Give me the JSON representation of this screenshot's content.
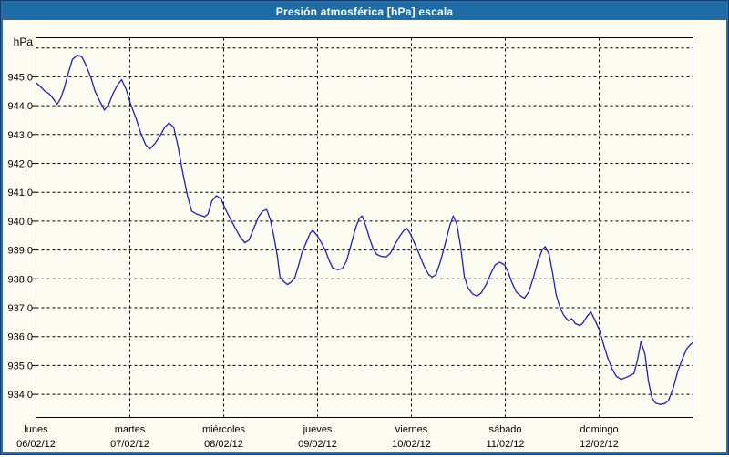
{
  "window": {
    "title": "Presión atmosférica [hPa] escala"
  },
  "colors": {
    "title_bar": "#1e6da6",
    "title_text": "#ffffff",
    "frame_border": "#2a6da8",
    "frame_outline": "#123f6f",
    "background": "#fcfcf2",
    "plot_border": "#000000",
    "grid": "#000000",
    "line": "#2020b8",
    "text": "#000000"
  },
  "chart_data": {
    "type": "line",
    "title": "Presión atmosférica [hPa] escala",
    "ylabel": "hPa",
    "ylim": [
      933.2,
      946.4
    ],
    "grid": "dashed",
    "y_ticks": [
      {
        "value": 945,
        "label": "945,0"
      },
      {
        "value": 944,
        "label": "944,0"
      },
      {
        "value": 943,
        "label": "943,0"
      },
      {
        "value": 942,
        "label": "942,0"
      },
      {
        "value": 941,
        "label": "941,0"
      },
      {
        "value": 940,
        "label": "940,0"
      },
      {
        "value": 939,
        "label": "939,0"
      },
      {
        "value": 938,
        "label": "938,0"
      },
      {
        "value": 937,
        "label": "937,0"
      },
      {
        "value": 936,
        "label": "936,0"
      },
      {
        "value": 935,
        "label": "935,0"
      },
      {
        "value": 934,
        "label": "934,0"
      }
    ],
    "y_top_gridline_value": 946,
    "x_range_hours": [
      0,
      168
    ],
    "x_days": [
      {
        "name": "lunes",
        "date": "06/02/12"
      },
      {
        "name": "martes",
        "date": "07/02/12"
      },
      {
        "name": "miércoles",
        "date": "08/02/12"
      },
      {
        "name": "jueves",
        "date": "09/02/12"
      },
      {
        "name": "viernes",
        "date": "10/02/12"
      },
      {
        "name": "sábado",
        "date": "11/02/12"
      },
      {
        "name": "domingo",
        "date": "12/02/12"
      }
    ],
    "series": [
      {
        "name": "Presión atmosférica",
        "unit": "hPa",
        "color": "#2020b8",
        "points": [
          [
            0.0,
            944.8
          ],
          [
            1.2,
            944.65
          ],
          [
            2.3,
            944.5
          ],
          [
            3.3,
            944.42
          ],
          [
            4.2,
            944.28
          ],
          [
            5.4,
            944.05
          ],
          [
            6.3,
            944.25
          ],
          [
            7.2,
            944.6
          ],
          [
            8.2,
            945.1
          ],
          [
            9.3,
            945.6
          ],
          [
            10.5,
            945.75
          ],
          [
            11.7,
            945.7
          ],
          [
            12.8,
            945.4
          ],
          [
            14.0,
            944.98
          ],
          [
            15.1,
            944.5
          ],
          [
            16.3,
            944.15
          ],
          [
            17.5,
            943.85
          ],
          [
            18.6,
            944.05
          ],
          [
            19.8,
            944.45
          ],
          [
            21.0,
            944.75
          ],
          [
            21.9,
            944.9
          ],
          [
            23.1,
            944.55
          ],
          [
            24.2,
            944.05
          ],
          [
            25.6,
            943.55
          ],
          [
            26.8,
            943.05
          ],
          [
            28.0,
            942.65
          ],
          [
            29.1,
            942.5
          ],
          [
            30.5,
            942.7
          ],
          [
            31.7,
            942.95
          ],
          [
            32.9,
            943.25
          ],
          [
            34.0,
            943.4
          ],
          [
            35.2,
            943.25
          ],
          [
            36.3,
            942.6
          ],
          [
            37.5,
            941.7
          ],
          [
            38.7,
            940.9
          ],
          [
            39.8,
            940.35
          ],
          [
            41.0,
            940.25
          ],
          [
            42.2,
            940.2
          ],
          [
            43.1,
            940.15
          ],
          [
            44.0,
            940.25
          ],
          [
            45.0,
            940.7
          ],
          [
            46.1,
            940.88
          ],
          [
            47.3,
            940.78
          ],
          [
            48.5,
            940.4
          ],
          [
            49.6,
            940.1
          ],
          [
            50.8,
            939.8
          ],
          [
            52.0,
            939.5
          ],
          [
            53.4,
            939.25
          ],
          [
            54.5,
            939.35
          ],
          [
            55.7,
            939.75
          ],
          [
            56.9,
            940.15
          ],
          [
            58.0,
            940.35
          ],
          [
            59.0,
            940.4
          ],
          [
            59.9,
            940.05
          ],
          [
            60.8,
            939.5
          ],
          [
            61.7,
            938.8
          ],
          [
            62.4,
            938.05
          ],
          [
            63.4,
            937.9
          ],
          [
            64.3,
            937.8
          ],
          [
            65.2,
            937.88
          ],
          [
            66.2,
            938.05
          ],
          [
            67.1,
            938.45
          ],
          [
            68.0,
            938.9
          ],
          [
            69.2,
            939.3
          ],
          [
            70.1,
            939.58
          ],
          [
            70.8,
            939.68
          ],
          [
            72.0,
            939.48
          ],
          [
            73.2,
            939.2
          ],
          [
            74.1,
            938.95
          ],
          [
            75.0,
            938.62
          ],
          [
            75.9,
            938.38
          ],
          [
            77.1,
            938.32
          ],
          [
            78.3,
            938.35
          ],
          [
            79.4,
            938.62
          ],
          [
            80.6,
            939.2
          ],
          [
            81.8,
            939.8
          ],
          [
            82.7,
            940.1
          ],
          [
            83.4,
            940.18
          ],
          [
            84.3,
            939.85
          ],
          [
            85.3,
            939.4
          ],
          [
            86.2,
            939.05
          ],
          [
            87.1,
            938.85
          ],
          [
            88.3,
            938.78
          ],
          [
            89.5,
            938.76
          ],
          [
            90.6,
            938.88
          ],
          [
            91.8,
            939.2
          ],
          [
            93.0,
            939.48
          ],
          [
            94.1,
            939.68
          ],
          [
            94.8,
            939.75
          ],
          [
            95.8,
            939.55
          ],
          [
            96.9,
            939.2
          ],
          [
            98.1,
            938.82
          ],
          [
            99.2,
            938.45
          ],
          [
            100.4,
            938.15
          ],
          [
            101.3,
            938.06
          ],
          [
            102.3,
            938.15
          ],
          [
            103.4,
            938.6
          ],
          [
            104.6,
            939.2
          ],
          [
            105.8,
            939.85
          ],
          [
            106.7,
            940.18
          ],
          [
            107.6,
            939.9
          ],
          [
            108.6,
            939.1
          ],
          [
            109.5,
            938.1
          ],
          [
            110.4,
            937.7
          ],
          [
            111.6,
            937.48
          ],
          [
            112.8,
            937.4
          ],
          [
            113.9,
            937.52
          ],
          [
            115.1,
            937.8
          ],
          [
            116.3,
            938.18
          ],
          [
            117.4,
            938.48
          ],
          [
            118.6,
            938.58
          ],
          [
            119.8,
            938.48
          ],
          [
            120.7,
            938.25
          ],
          [
            121.6,
            937.9
          ],
          [
            122.8,
            937.55
          ],
          [
            124.0,
            937.4
          ],
          [
            124.9,
            937.33
          ],
          [
            126.0,
            937.55
          ],
          [
            127.2,
            938.05
          ],
          [
            128.4,
            938.65
          ],
          [
            129.5,
            939.02
          ],
          [
            130.2,
            939.12
          ],
          [
            131.2,
            938.85
          ],
          [
            132.1,
            938.2
          ],
          [
            133.0,
            937.45
          ],
          [
            134.0,
            937.0
          ],
          [
            134.9,
            936.75
          ],
          [
            136.1,
            936.55
          ],
          [
            137.0,
            936.62
          ],
          [
            137.9,
            936.45
          ],
          [
            139.1,
            936.38
          ],
          [
            140.0,
            936.5
          ],
          [
            140.9,
            936.7
          ],
          [
            141.9,
            936.85
          ],
          [
            142.8,
            936.6
          ],
          [
            144.0,
            936.25
          ],
          [
            145.2,
            935.7
          ],
          [
            146.1,
            935.3
          ],
          [
            147.3,
            934.88
          ],
          [
            148.4,
            934.62
          ],
          [
            149.6,
            934.52
          ],
          [
            150.8,
            934.58
          ],
          [
            151.9,
            934.65
          ],
          [
            152.9,
            934.72
          ],
          [
            153.8,
            935.2
          ],
          [
            154.7,
            935.82
          ],
          [
            155.7,
            935.4
          ],
          [
            156.6,
            934.45
          ],
          [
            157.5,
            933.88
          ],
          [
            158.4,
            933.7
          ],
          [
            159.6,
            933.65
          ],
          [
            160.8,
            933.68
          ],
          [
            161.7,
            933.78
          ],
          [
            162.9,
            934.2
          ],
          [
            164.1,
            934.8
          ],
          [
            165.2,
            935.2
          ],
          [
            166.4,
            935.58
          ],
          [
            167.3,
            935.72
          ],
          [
            168.0,
            935.8
          ]
        ]
      }
    ]
  }
}
